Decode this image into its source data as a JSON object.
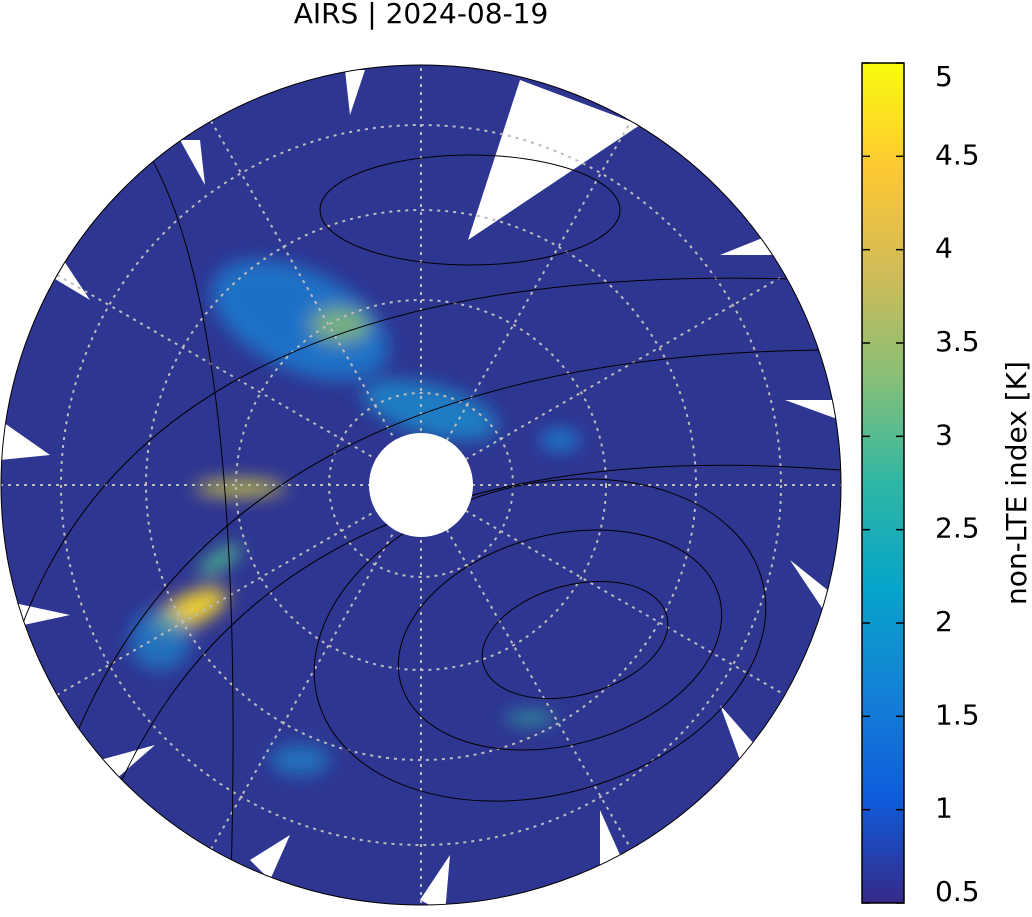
{
  "title": "AIRS | 2024-08-19",
  "colorbar": {
    "label": "non-LTE index [K]",
    "lim": [
      0.5,
      5
    ],
    "ticks": [
      0.5,
      1,
      1.5,
      2,
      2.5,
      3,
      3.5,
      4,
      4.5,
      5
    ],
    "colors": [
      "#352a87",
      "#0f5cdd",
      "#1481d6",
      "#06a4ca",
      "#2eb7a4",
      "#87bf77",
      "#d1bb59",
      "#fec832",
      "#f9fb0e"
    ]
  }
}
